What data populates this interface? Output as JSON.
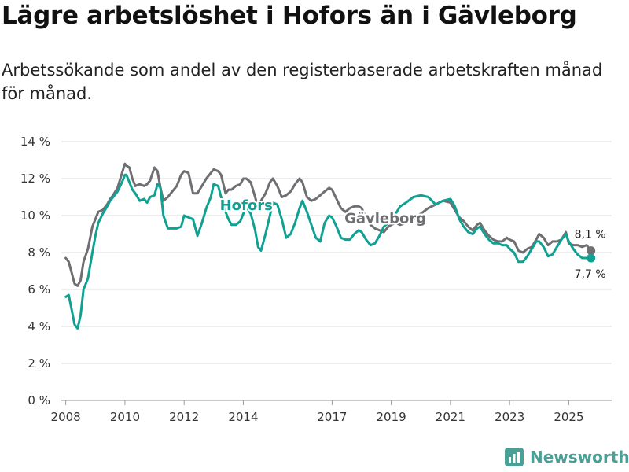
{
  "title": "Lägre arbetslöshet i Hofors än i Gävleborg",
  "subtitle": "Arbetssökande som andel av den registerbaserade arbetskraften månad för månad.",
  "brand": {
    "name": "Newsworthy",
    "icon": "newsworthy-logo-icon"
  },
  "colors": {
    "hofors": "#11a193",
    "gavleborg": "#6f6f73",
    "grid": "#dcdcdc",
    "brand": "#4a9f96"
  },
  "chart_data": {
    "type": "line",
    "title": "Lägre arbetslöshet i Hofors än i Gävleborg",
    "xlabel": "",
    "ylabel": "",
    "xlim": [
      2007.85,
      2026.45
    ],
    "ylim": [
      0,
      14
    ],
    "y_ticks": [
      0,
      2,
      4,
      6,
      8,
      10,
      12,
      14
    ],
    "y_tick_labels": [
      "0 %",
      "2 %",
      "4 %",
      "6 %",
      "8 %",
      "10 %",
      "12 %",
      "14 %"
    ],
    "x_ticks": [
      2008,
      2010,
      2012,
      2014,
      2017,
      2019,
      2021,
      2023,
      2025
    ],
    "x_tick_labels": [
      "2008",
      "2010",
      "2012",
      "2014",
      "2017",
      "2019",
      "2021",
      "2023",
      "2025"
    ],
    "grid": true,
    "series": [
      {
        "name": "Gävleborg",
        "label": "Gävleborg",
        "end_label": "8,1 %",
        "color": "#6f6f73",
        "x": [
          2008.0,
          2008.1,
          2008.2,
          2008.3,
          2008.4,
          2008.5,
          2008.6,
          2008.75,
          2008.9,
          2009.0,
          2009.1,
          2009.25,
          2009.4,
          2009.5,
          2009.6,
          2009.75,
          2009.9,
          2010.0,
          2010.05,
          2010.15,
          2010.25,
          2010.35,
          2010.5,
          2010.65,
          2010.75,
          2010.85,
          2011.0,
          2011.1,
          2011.2,
          2011.3,
          2011.45,
          2011.6,
          2011.75,
          2011.9,
          2012.0,
          2012.15,
          2012.3,
          2012.45,
          2012.6,
          2012.75,
          2012.9,
          2013.0,
          2013.15,
          2013.25,
          2013.4,
          2013.5,
          2013.6,
          2013.75,
          2013.9,
          2014.0,
          2014.1,
          2014.25,
          2014.4,
          2014.5,
          2014.6,
          2014.75,
          2014.9,
          2015.0,
          2015.15,
          2015.3,
          2015.45,
          2015.6,
          2015.75,
          2015.9,
          2016.0,
          2016.15,
          2016.3,
          2016.45,
          2016.6,
          2016.75,
          2016.9,
          2017.0,
          2017.15,
          2017.3,
          2017.45,
          2017.6,
          2017.75,
          2017.9,
          2018.0,
          2018.15,
          2018.3,
          2018.45,
          2018.6,
          2018.75,
          2018.9,
          2019.0,
          2019.15,
          2019.3,
          2019.5,
          2019.75,
          2020.0,
          2020.25,
          2020.5,
          2020.75,
          2021.0,
          2021.15,
          2021.3,
          2021.45,
          2021.6,
          2021.75,
          2021.9,
          2022.0,
          2022.15,
          2022.3,
          2022.45,
          2022.6,
          2022.75,
          2022.9,
          2023.0,
          2023.15,
          2023.3,
          2023.45,
          2023.6,
          2023.75,
          2023.9,
          2024.0,
          2024.15,
          2024.3,
          2024.45,
          2024.6,
          2024.75,
          2024.9,
          2025.0,
          2025.15,
          2025.3,
          2025.45,
          2025.6,
          2025.75
        ],
        "values": [
          7.7,
          7.5,
          6.9,
          6.3,
          6.2,
          6.5,
          7.5,
          8.2,
          9.4,
          9.8,
          10.2,
          10.3,
          10.6,
          10.9,
          11.1,
          11.5,
          12.3,
          12.8,
          12.7,
          12.6,
          12.0,
          11.6,
          11.7,
          11.6,
          11.7,
          11.9,
          12.6,
          12.4,
          11.5,
          10.8,
          11.0,
          11.3,
          11.6,
          12.2,
          12.4,
          12.3,
          11.2,
          11.2,
          11.6,
          12.0,
          12.3,
          12.5,
          12.4,
          12.2,
          11.2,
          11.4,
          11.4,
          11.6,
          11.7,
          12.0,
          12.0,
          11.8,
          11.0,
          10.4,
          10.8,
          11.2,
          11.8,
          12.0,
          11.6,
          11.0,
          11.1,
          11.3,
          11.7,
          12.0,
          11.8,
          11.0,
          10.8,
          10.9,
          11.1,
          11.3,
          11.5,
          11.4,
          10.9,
          10.4,
          10.2,
          10.4,
          10.5,
          10.5,
          10.4,
          9.9,
          9.5,
          9.3,
          9.2,
          9.1,
          9.4,
          9.5,
          9.6,
          9.5,
          9.6,
          9.8,
          10.1,
          10.4,
          10.6,
          10.8,
          10.7,
          10.3,
          9.9,
          9.7,
          9.4,
          9.2,
          9.5,
          9.6,
          9.2,
          8.9,
          8.7,
          8.6,
          8.6,
          8.8,
          8.7,
          8.6,
          8.1,
          8.0,
          8.2,
          8.3,
          8.7,
          9.0,
          8.8,
          8.4,
          8.6,
          8.6,
          8.7,
          9.1,
          8.5,
          8.4,
          8.4,
          8.3,
          8.4,
          8.1
        ]
      },
      {
        "name": "Hofors",
        "label": "Hofors",
        "end_label": "7,7 %",
        "color": "#11a193",
        "x": [
          2008.0,
          2008.1,
          2008.2,
          2008.3,
          2008.4,
          2008.5,
          2008.6,
          2008.75,
          2008.9,
          2009.0,
          2009.1,
          2009.25,
          2009.4,
          2009.5,
          2009.6,
          2009.75,
          2009.9,
          2010.0,
          2010.05,
          2010.15,
          2010.25,
          2010.35,
          2010.5,
          2010.65,
          2010.75,
          2010.85,
          2011.0,
          2011.1,
          2011.2,
          2011.3,
          2011.45,
          2011.6,
          2011.75,
          2011.9,
          2012.0,
          2012.15,
          2012.3,
          2012.45,
          2012.6,
          2012.75,
          2012.9,
          2013.0,
          2013.15,
          2013.25,
          2013.4,
          2013.5,
          2013.6,
          2013.75,
          2013.9,
          2014.0,
          2014.1,
          2014.25,
          2014.4,
          2014.5,
          2014.6,
          2014.75,
          2014.9,
          2015.0,
          2015.15,
          2015.3,
          2015.45,
          2015.6,
          2015.75,
          2015.9,
          2016.0,
          2016.15,
          2016.3,
          2016.45,
          2016.6,
          2016.75,
          2016.9,
          2017.0,
          2017.15,
          2017.3,
          2017.45,
          2017.6,
          2017.75,
          2017.9,
          2018.0,
          2018.15,
          2018.3,
          2018.45,
          2018.6,
          2018.75,
          2018.9,
          2019.0,
          2019.15,
          2019.3,
          2019.5,
          2019.75,
          2020.0,
          2020.25,
          2020.5,
          2020.75,
          2021.0,
          2021.15,
          2021.3,
          2021.45,
          2021.6,
          2021.75,
          2021.9,
          2022.0,
          2022.15,
          2022.3,
          2022.45,
          2022.6,
          2022.75,
          2022.9,
          2023.0,
          2023.15,
          2023.3,
          2023.45,
          2023.6,
          2023.75,
          2023.9,
          2024.0,
          2024.15,
          2024.3,
          2024.45,
          2024.6,
          2024.75,
          2024.9,
          2025.0,
          2025.15,
          2025.3,
          2025.45,
          2025.6,
          2025.75
        ],
        "values": [
          5.6,
          5.7,
          4.9,
          4.1,
          3.9,
          4.6,
          6.0,
          6.6,
          8.0,
          8.9,
          9.6,
          10.1,
          10.5,
          10.8,
          11.0,
          11.3,
          11.8,
          12.2,
          12.2,
          11.8,
          11.4,
          11.2,
          10.8,
          10.9,
          10.7,
          11.0,
          11.1,
          11.7,
          11.5,
          10.0,
          9.3,
          9.3,
          9.3,
          9.4,
          10.0,
          9.9,
          9.8,
          8.9,
          9.6,
          10.4,
          11.0,
          11.7,
          11.6,
          11.0,
          10.2,
          9.8,
          9.5,
          9.5,
          9.7,
          10.1,
          10.5,
          10.1,
          9.2,
          8.3,
          8.1,
          9.0,
          10.0,
          10.7,
          10.6,
          9.8,
          8.8,
          9.0,
          9.6,
          10.4,
          10.8,
          10.2,
          9.5,
          8.8,
          8.6,
          9.6,
          10.0,
          9.9,
          9.4,
          8.8,
          8.7,
          8.7,
          9.0,
          9.2,
          9.1,
          8.7,
          8.4,
          8.5,
          8.9,
          9.4,
          9.6,
          9.8,
          10.1,
          10.5,
          10.7,
          11.0,
          11.1,
          11.0,
          10.6,
          10.8,
          10.9,
          10.5,
          9.8,
          9.4,
          9.1,
          9.0,
          9.3,
          9.4,
          9.0,
          8.7,
          8.5,
          8.5,
          8.4,
          8.4,
          8.2,
          8.0,
          7.5,
          7.5,
          7.8,
          8.2,
          8.6,
          8.6,
          8.3,
          7.8,
          7.9,
          8.3,
          8.7,
          9.0,
          8.6,
          8.2,
          7.9,
          7.7,
          7.7,
          7.7
        ]
      }
    ]
  }
}
